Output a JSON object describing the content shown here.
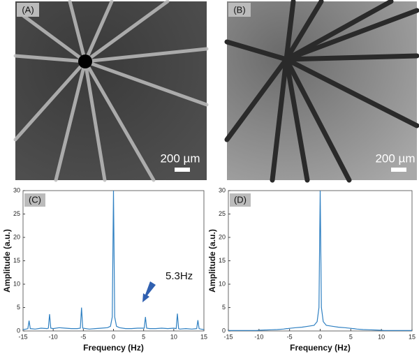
{
  "panels": [
    {
      "label": "(A)",
      "scale_bar": "200 µm"
    },
    {
      "label": "(B)",
      "scale_bar": "200 µm"
    }
  ],
  "chart_data": [
    {
      "type": "line",
      "panel_label": "(C)",
      "x_label": "Frequency (Hz)",
      "y_label": "Amplitude (a.u.)",
      "annotation": "5.3Hz",
      "xlim": [
        -15,
        15
      ],
      "ylim": [
        0,
        30
      ],
      "xticks": [
        -15,
        -10,
        -5,
        0,
        5,
        10,
        15
      ],
      "yticks": [
        0,
        5,
        10,
        15,
        20,
        25,
        30
      ],
      "x": [
        -15,
        -14.5,
        -14.2,
        -14,
        -13.8,
        -13,
        -12,
        -11,
        -10.8,
        -10.6,
        -10.4,
        -10,
        -9,
        -8,
        -7,
        -6,
        -5.5,
        -5.3,
        -5.1,
        -4,
        -3,
        -2,
        -1,
        -0.5,
        -0.2,
        0,
        0.2,
        0.5,
        1,
        2,
        3,
        4,
        5.1,
        5.3,
        5.5,
        6,
        7,
        8,
        9,
        10,
        10.4,
        10.6,
        10.8,
        11,
        12,
        13,
        13.8,
        14,
        14.2,
        14.5,
        15
      ],
      "series": [
        {
          "color": "#2f80c2",
          "values": [
            0.3,
            0.4,
            0.5,
            2.2,
            0.5,
            0.4,
            0.6,
            0.5,
            0.6,
            3.6,
            0.6,
            0.5,
            0.7,
            0.6,
            0.5,
            0.5,
            0.6,
            5,
            0.6,
            0.4,
            0.5,
            0.6,
            0.7,
            1,
            3,
            30,
            3,
            1,
            0.7,
            0.5,
            0.5,
            0.6,
            0.6,
            3,
            0.6,
            0.5,
            0.5,
            0.6,
            0.5,
            0.6,
            0.5,
            3.7,
            0.5,
            0.4,
            0.5,
            0.4,
            0.5,
            2.3,
            0.5,
            0.4,
            0.3
          ]
        }
      ]
    },
    {
      "type": "line",
      "panel_label": "(D)",
      "x_label": "Frequency (Hz)",
      "y_label": "Amplitude (a.u.)",
      "xlim": [
        -15,
        15
      ],
      "ylim": [
        0,
        30
      ],
      "xticks": [
        -15,
        -10,
        -5,
        0,
        5,
        10,
        15
      ],
      "yticks": [
        0,
        5,
        10,
        15,
        20,
        25,
        30
      ],
      "x": [
        -15,
        -14.5,
        -14.2,
        -14,
        -13.8,
        -13,
        -12,
        -11,
        -10.8,
        -10.6,
        -10.4,
        -10,
        -9,
        -8,
        -7,
        -6,
        -5.5,
        -5.3,
        -5.1,
        -4,
        -3,
        -2,
        -1,
        -0.5,
        -0.2,
        0,
        0.2,
        0.5,
        1,
        2,
        3,
        4,
        5.1,
        5.3,
        5.5,
        6,
        7,
        8,
        9,
        10,
        10.4,
        10.6,
        10.8,
        11,
        12,
        13,
        13.8,
        14,
        14.2,
        14.5,
        15
      ],
      "series": [
        {
          "color": "#2f80c2",
          "values": [
            0.1,
            0.1,
            0.1,
            0.1,
            0.1,
            0.1,
            0.1,
            0.1,
            0.1,
            0.1,
            0.1,
            0.15,
            0.2,
            0.25,
            0.3,
            0.4,
            0.5,
            0.5,
            0.55,
            0.7,
            0.8,
            1.0,
            1.2,
            2,
            5,
            30,
            5,
            2,
            1.2,
            1.0,
            0.8,
            0.7,
            0.55,
            0.5,
            0.5,
            0.4,
            0.3,
            0.25,
            0.2,
            0.15,
            0.1,
            0.1,
            0.1,
            0.1,
            0.1,
            0.1,
            0.1,
            0.1,
            0.1,
            0.1,
            0.1
          ]
        }
      ]
    }
  ]
}
